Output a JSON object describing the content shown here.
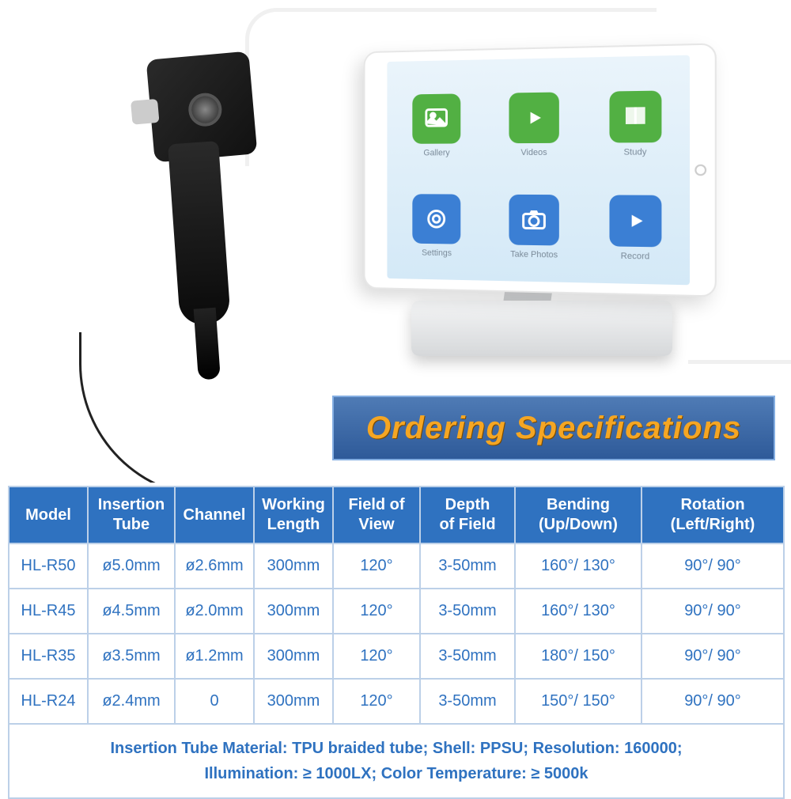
{
  "banner": {
    "title": "Ordering Specifications"
  },
  "tablet": {
    "apps": [
      {
        "label": "Gallery",
        "color": "green",
        "icon": "image"
      },
      {
        "label": "Videos",
        "color": "green",
        "icon": "play"
      },
      {
        "label": "Study",
        "color": "green",
        "icon": "book"
      },
      {
        "label": "Settings",
        "color": "blue",
        "icon": "gear"
      },
      {
        "label": "Take Photos",
        "color": "blue",
        "icon": "camera"
      },
      {
        "label": "Record",
        "color": "blue",
        "icon": "rec"
      }
    ]
  },
  "table": {
    "columns": [
      "Model",
      "Insertion Tube",
      "Channel",
      "Working Length",
      "Field of View",
      "Depth of Field",
      "Bending (Up/Down)",
      "Rotation (Left/Right)"
    ],
    "col_widths": [
      "100px",
      "110px",
      "100px",
      "100px",
      "110px",
      "120px",
      "160px",
      "180px"
    ],
    "rows": [
      [
        "HL-R50",
        "ø5.0mm",
        "ø2.6mm",
        "300mm",
        "120°",
        "3-50mm",
        "160°/ 130°",
        "90°/ 90°"
      ],
      [
        "HL-R45",
        "ø4.5mm",
        "ø2.0mm",
        "300mm",
        "120°",
        "3-50mm",
        "160°/ 130°",
        "90°/ 90°"
      ],
      [
        "HL-R35",
        "ø3.5mm",
        "ø1.2mm",
        "300mm",
        "120°",
        "3-50mm",
        "180°/ 150°",
        "90°/ 90°"
      ],
      [
        "HL-R24",
        "ø2.4mm",
        "0",
        "300mm",
        "120°",
        "3-50mm",
        "150°/ 150°",
        "90°/ 90°"
      ]
    ],
    "footer": [
      {
        "label": "Insertion Tube Material:",
        "value": " TPU braided tube; "
      },
      {
        "label": "Shell:",
        "value": " PPSU; "
      },
      {
        "label": "Resolution:",
        "value": " 160000;"
      },
      {
        "label": "Illumination:",
        "value": " ≥ 1000LX; "
      },
      {
        "label": "Color Temperature:",
        "value": " ≥ 5000k"
      }
    ],
    "header_bg": "#2f72c0",
    "header_fg": "#ffffff",
    "cell_fg": "#2f72c0",
    "border": "#bcd0e8"
  },
  "colors": {
    "banner_bg_top": "#4f7bb5",
    "banner_bg_bottom": "#2e5a99",
    "banner_text": "#f5a623",
    "app_green": "#52b043",
    "app_blue": "#3b7fd4"
  }
}
